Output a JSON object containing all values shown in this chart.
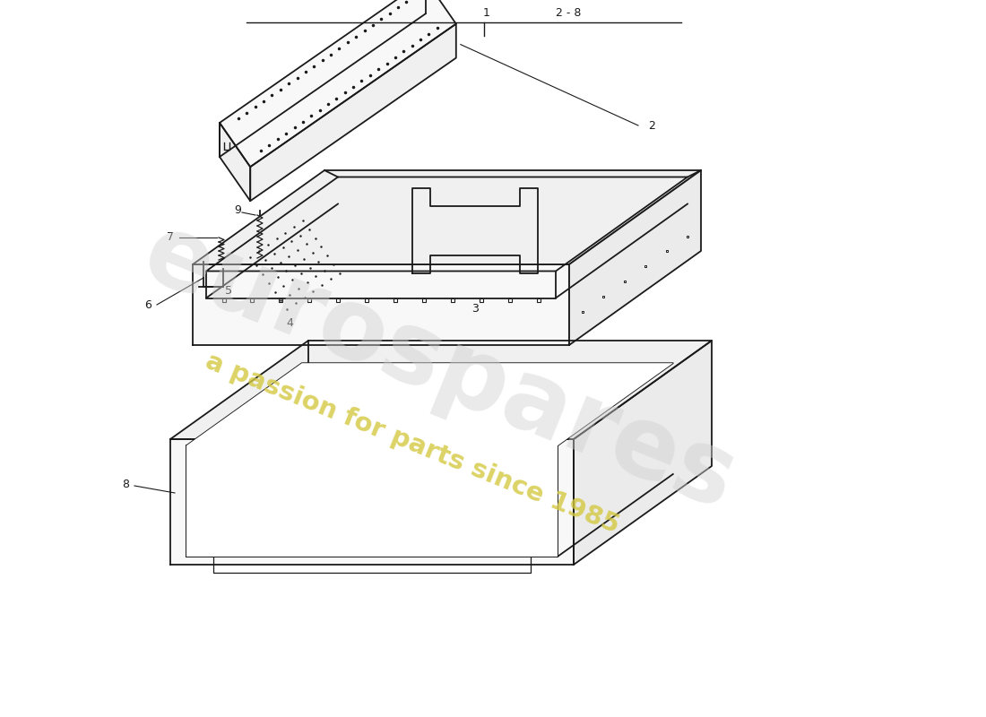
{
  "background_color": "#ffffff",
  "line_color": "#1a1a1a",
  "watermark_text1": "eurospares",
  "watermark_text2": "a passion for parts since 1985",
  "watermark_color1": "#d0d0d0",
  "watermark_color2": "#d4c840",
  "label_1": "1",
  "label_2": "2",
  "label_28": "2 - 8",
  "label_3": "3",
  "label_4": "4",
  "label_5": "5",
  "label_6": "6",
  "label_7": "7",
  "label_8": "8",
  "label_9": "9"
}
